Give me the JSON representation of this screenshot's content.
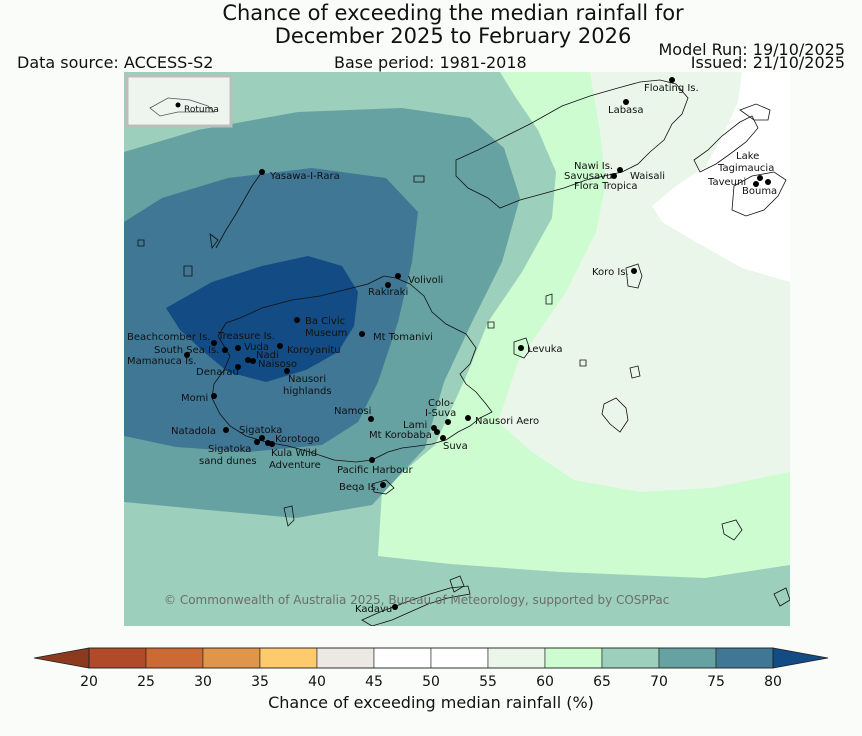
{
  "header": {
    "title_line1": "Chance of exceeding the median rainfall for",
    "title_line2": "December 2025 to February 2026",
    "data_source": "Data source: ACCESS-S2",
    "base_period": "Base period: 1981-2018",
    "model_run": "Model Run: 19/10/2025",
    "issued": "Issued: 21/10/2025"
  },
  "inset": {
    "label": "Rotuma"
  },
  "places": {
    "floating": "Floating Is.",
    "labasa": "Labasa",
    "nawi": "Nawi Is.",
    "savusavu": "Savusavu",
    "waisali": "Waisali",
    "flora": "Flora Tropica",
    "lake1": "Lake",
    "lake2": "Tagimaucia",
    "taveuni": "Taveuni",
    "bouma": "Bouma",
    "yasawa": "Yasawa-I-Rara",
    "volivoli": "Volivoli",
    "rakiraki": "Rakiraki",
    "koro": "Koro Is.",
    "beachcomber": "Beachcomber Is.",
    "treasure": "Treasure Is.",
    "vuda": "Vuda",
    "southsea": "South Sea Is.",
    "nadi": "Nadi",
    "mamanuca": "Mamanuca Is.",
    "naisoso": "Naisoso",
    "denarau": "Denarau",
    "bacivic1": "Ba Civic",
    "bacivic2": "Museum",
    "koroyanitu": "Koroyanitu",
    "tomanivi": "Mt Tomanivi",
    "levuka": "Levuka",
    "nausori1": "Nausori",
    "nausori2": "highlands",
    "momi": "Momi",
    "namosi": "Namosi",
    "colo1": "Colo-",
    "colo2": "I-Suva",
    "lami": "Lami",
    "nausoriaero": "Nausori Aero",
    "korobaba": "Mt Korobaba",
    "suva": "Suva",
    "natadola": "Natadola",
    "sigatoka": "Sigatoka",
    "korotogo": "Korotogo",
    "sigsand1": "Sigatoka",
    "sigsand2": "sand dunes",
    "kula1": "Kula Wild",
    "kula2": "Adventure",
    "pacharbour": "Pacific Harbour",
    "beqa": "Beqa Is.",
    "kadavu": "Kadavu"
  },
  "copyright": "© Commonwealth of Australia 2025, Bureau of Meteorology, supported by COSPPac",
  "colorbar": {
    "title": "Chance of exceeding median rainfall (%)",
    "ticks": [
      "20",
      "25",
      "30",
      "35",
      "40",
      "45",
      "50",
      "55",
      "60",
      "65",
      "70",
      "75",
      "80"
    ],
    "colors": [
      "#8c3a1e",
      "#b04a28",
      "#cc6a35",
      "#e0954a",
      "#fdcb6b",
      "#ece9e5",
      "#ffffff",
      "#ffffff",
      "#eaf6ea",
      "#ccfcd0",
      "#9ccfbc",
      "#66a2a2",
      "#3f7795",
      "#134b84"
    ]
  }
}
